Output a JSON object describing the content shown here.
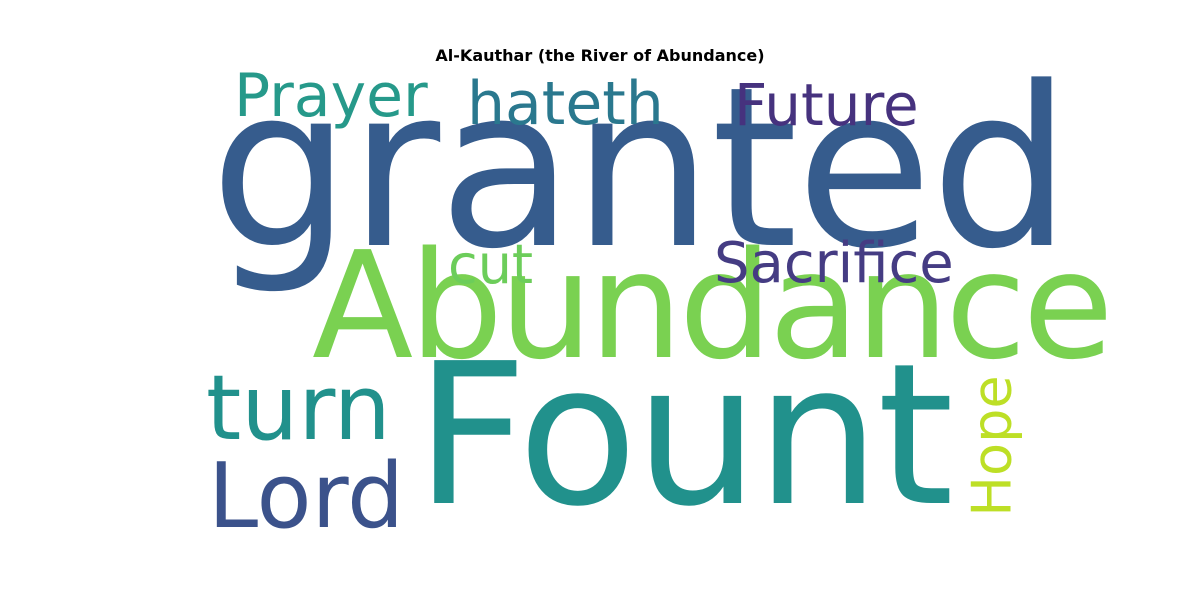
{
  "title": "Al-Kauthar (the River of Abundance)",
  "words": [
    {
      "text": "granted",
      "color": "#365c8d",
      "orientation": "horizontal"
    },
    {
      "text": "Abundance",
      "color": "#7ad151",
      "orientation": "horizontal"
    },
    {
      "text": "Fount",
      "color": "#21918c",
      "orientation": "horizontal"
    },
    {
      "text": "Prayer",
      "color": "#26998a",
      "orientation": "horizontal"
    },
    {
      "text": "hateth",
      "color": "#2a788e",
      "orientation": "horizontal"
    },
    {
      "text": "Future",
      "color": "#46327e",
      "orientation": "horizontal"
    },
    {
      "text": "cut",
      "color": "#6ccd5a",
      "orientation": "horizontal"
    },
    {
      "text": "Sacrifice",
      "color": "#453c83",
      "orientation": "horizontal"
    },
    {
      "text": "turn",
      "color": "#21918c",
      "orientation": "horizontal"
    },
    {
      "text": "Lord",
      "color": "#3b528b",
      "orientation": "horizontal"
    },
    {
      "text": "Hope",
      "color": "#bddf26",
      "orientation": "vertical"
    }
  ]
}
